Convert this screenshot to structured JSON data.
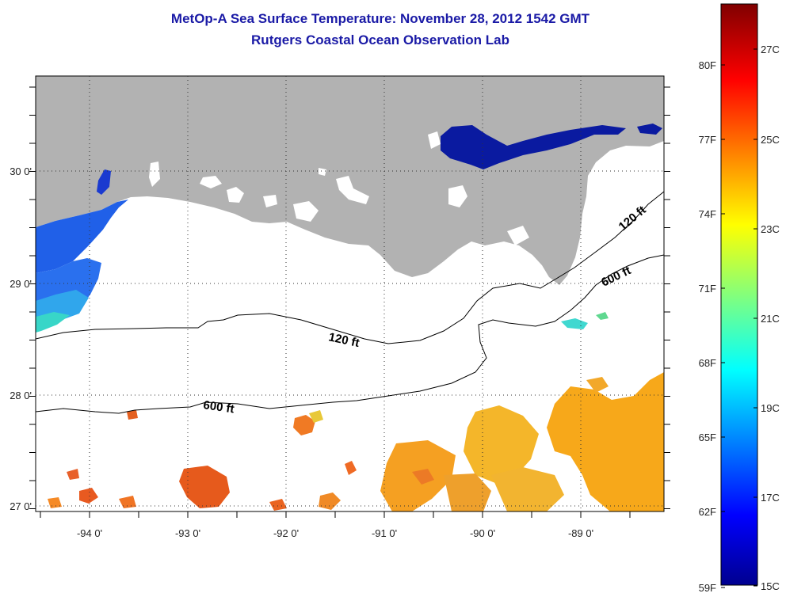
{
  "title": "MetOp-A Sea Surface Temperature:  November 28, 2012 1542 GMT",
  "subtitle": "Rutgers Coastal Ocean Observation Lab",
  "map": {
    "lon_ticks": [
      "-94 0'",
      "-93 0'",
      "-92 0'",
      "-91 0'",
      "-90 0'",
      "-89 0'"
    ],
    "lat_ticks": [
      "30 0'",
      "29 0'",
      "28 0'",
      "27 0'"
    ],
    "isobaths": [
      {
        "label": "120 ft"
      },
      {
        "label": "120 ft"
      },
      {
        "label": "600 ft"
      },
      {
        "label": "600 ft"
      }
    ],
    "colors": {
      "land": "#b2b2b2",
      "cloud_masked": "#ffffff"
    }
  },
  "colorbar": {
    "fahrenheit_labels": [
      "80F",
      "77F",
      "74F",
      "71F",
      "68F",
      "65F",
      "62F",
      "59F"
    ],
    "celsius_labels": [
      "27C",
      "25C",
      "23C",
      "21C",
      "19C",
      "17C",
      "15C"
    ],
    "range_c": [
      15,
      28
    ]
  }
}
